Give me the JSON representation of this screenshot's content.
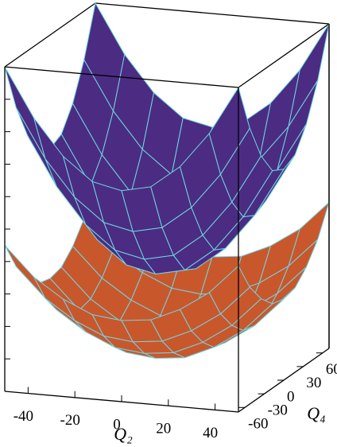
{
  "chart_data": {
    "type": "surface3d",
    "xlabel": "Q₂",
    "ylabel": "Q₄",
    "xlim": [
      -50,
      50
    ],
    "ylim": [
      -70,
      70
    ],
    "zlim": [
      0,
      10
    ],
    "xticks": [
      -40,
      -20,
      0,
      20,
      40
    ],
    "yticks": [
      -60,
      -30,
      0,
      30,
      60
    ],
    "zticks": [
      1,
      2,
      3,
      4,
      5,
      6,
      7,
      8,
      9
    ],
    "x": [
      -50,
      -37.5,
      -25,
      -12.5,
      0,
      12.5,
      25,
      37.5,
      50
    ],
    "y": [
      -70,
      -52.5,
      -35,
      -17.5,
      0,
      17.5,
      35,
      52.5,
      70
    ],
    "mesh_color": "#6fd6e4",
    "series": [
      {
        "color": "#c9572c",
        "values": [
          [
            4.5,
            3.6,
            3.0,
            2.6,
            2.5,
            2.6,
            3.0,
            3.6,
            4.5
          ],
          [
            3.6,
            2.7,
            2.1,
            1.7,
            1.6,
            1.7,
            2.1,
            2.7,
            3.6
          ],
          [
            3.0,
            2.1,
            1.5,
            1.1,
            1.0,
            1.1,
            1.5,
            2.1,
            3.0
          ],
          [
            2.6,
            1.7,
            1.1,
            0.7,
            0.6,
            0.7,
            1.1,
            1.7,
            2.6
          ],
          [
            2.5,
            1.6,
            1.0,
            0.6,
            0.5,
            0.6,
            1.0,
            1.6,
            2.5
          ],
          [
            2.6,
            1.7,
            1.1,
            0.7,
            0.6,
            0.7,
            1.1,
            1.7,
            2.6
          ],
          [
            3.0,
            2.1,
            1.5,
            1.1,
            1.0,
            1.1,
            1.5,
            2.1,
            3.0
          ],
          [
            3.6,
            2.7,
            2.1,
            1.7,
            1.6,
            1.7,
            2.1,
            2.7,
            3.6
          ],
          [
            4.5,
            3.6,
            3.0,
            2.6,
            2.5,
            2.6,
            3.0,
            3.6,
            4.5
          ]
        ]
      },
      {
        "color": "#4b2c82",
        "values": [
          [
            10.0,
            8.5,
            7.4,
            6.7,
            6.5,
            6.7,
            7.4,
            8.5,
            10.0
          ],
          [
            8.5,
            7.0,
            5.9,
            5.2,
            5.0,
            5.2,
            5.9,
            7.0,
            8.5
          ],
          [
            7.4,
            5.9,
            4.8,
            4.1,
            3.9,
            4.1,
            4.8,
            5.9,
            7.4
          ],
          [
            6.7,
            5.2,
            4.1,
            3.4,
            3.2,
            3.4,
            4.1,
            5.2,
            6.7
          ],
          [
            6.5,
            5.0,
            3.9,
            3.2,
            3.0,
            3.2,
            3.9,
            5.0,
            6.5
          ],
          [
            6.7,
            5.2,
            4.1,
            3.4,
            3.2,
            3.4,
            4.1,
            5.2,
            6.7
          ],
          [
            7.4,
            5.9,
            4.8,
            4.1,
            3.9,
            4.1,
            4.8,
            5.9,
            7.4
          ],
          [
            8.5,
            7.0,
            5.9,
            5.2,
            5.0,
            5.2,
            5.9,
            7.0,
            8.5
          ],
          [
            10.0,
            8.5,
            7.4,
            6.7,
            6.5,
            6.7,
            7.4,
            8.5,
            10.0
          ]
        ]
      }
    ]
  }
}
